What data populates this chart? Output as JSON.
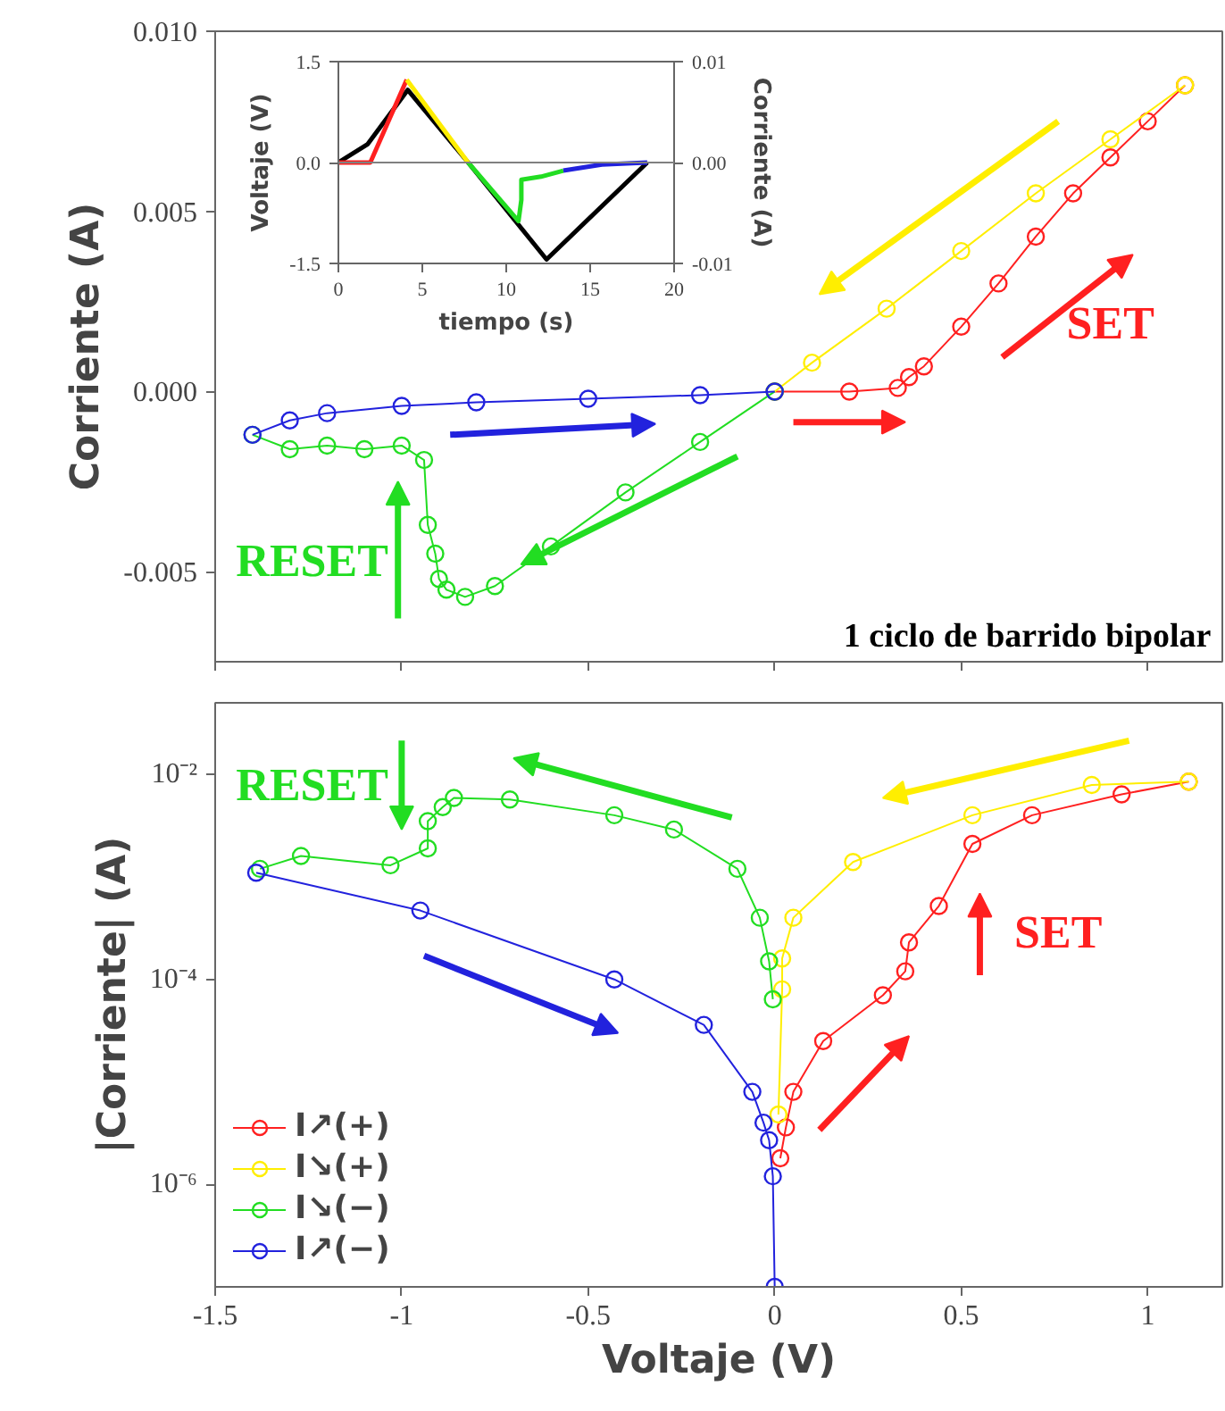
{
  "chart_data": [
    {
      "type": "line",
      "ylabel": "Corriente (A)",
      "xlim": [
        -1.5,
        1.2
      ],
      "ylim": [
        -0.0075,
        0.01
      ],
      "xticks": [
        -1.5,
        -1,
        -0.5,
        0,
        0.5,
        1
      ],
      "yticks": [
        {
          "value": 0.01,
          "label": "0.010"
        },
        {
          "value": 0.005,
          "label": "0.005"
        },
        {
          "value": 0,
          "label": "0.000"
        },
        {
          "value": -0.005,
          "label": "-0.005"
        }
      ],
      "tick_labels": "y",
      "marker": "circle",
      "grid": false,
      "annotations": [
        "SET",
        "RESET",
        "1 ciclo de barrido bipolar"
      ],
      "series": [
        {
          "color": "#ff2020",
          "x": [
            0,
            0.2,
            0.33,
            0.36,
            0.4,
            0.5,
            0.6,
            0.7,
            0.8,
            0.9,
            1.0,
            1.1
          ],
          "values": [
            0,
            0,
            0.0001,
            0.0004,
            0.0007,
            0.0018,
            0.003,
            0.0043,
            0.0055,
            0.0065,
            0.0075,
            0.0085
          ]
        },
        {
          "color": "#ffee00",
          "x": [
            1.1,
            0.9,
            0.7,
            0.5,
            0.3,
            0.1,
            0
          ],
          "values": [
            0.0085,
            0.007,
            0.0055,
            0.0039,
            0.0023,
            0.0008,
            0
          ]
        },
        {
          "color": "#22dd22",
          "x": [
            0,
            -0.2,
            -0.4,
            -0.6,
            -0.75,
            -0.83,
            -0.88,
            -0.9,
            -0.91,
            -0.93,
            -0.94,
            -1.0,
            -1.1,
            -1.2,
            -1.3,
            -1.4
          ],
          "values": [
            0,
            -0.0014,
            -0.0028,
            -0.0043,
            -0.0054,
            -0.0057,
            -0.0055,
            -0.0052,
            -0.0045,
            -0.0037,
            -0.0019,
            -0.0015,
            -0.0016,
            -0.0015,
            -0.0016,
            -0.0012
          ]
        },
        {
          "color": "#2222dd",
          "x": [
            -1.4,
            -1.3,
            -1.2,
            -1.0,
            -0.8,
            -0.5,
            -0.2,
            0
          ],
          "values": [
            -0.0012,
            -0.0008,
            -0.0006,
            -0.0004,
            -0.0003,
            -0.0002,
            -0.0001,
            0
          ]
        }
      ]
    },
    {
      "type": "line",
      "xlabel": "tiempo (s)",
      "ylabel": "Voltaje (V)",
      "y2label": "Corriente (A)",
      "xlim": [
        0,
        20
      ],
      "ylim": [
        -1.5,
        1.5
      ],
      "y2lim": [
        -0.01,
        0.01
      ],
      "xticks": [
        0,
        5,
        10,
        15,
        20
      ],
      "yticks": [
        {
          "value": -1.5,
          "label": "-1.5"
        },
        {
          "value": 0,
          "label": "0.0"
        },
        {
          "value": 1.5,
          "label": "1.5"
        }
      ],
      "y2ticks": [
        {
          "value": -0.01,
          "label": "-0.01"
        },
        {
          "value": 0,
          "label": "0.00"
        },
        {
          "value": 0.01,
          "label": "0.01"
        }
      ],
      "grid": false,
      "ref_lines": [
        {
          "axis": "y",
          "value": 0,
          "color": "#808080"
        }
      ],
      "series": [
        {
          "color": "#000000",
          "x": [
            0,
            1.73,
            4.13,
            7.73,
            12.4,
            18.4
          ],
          "values": [
            0,
            0.27,
            1.08,
            0,
            -1.44,
            0
          ]
        },
        {
          "color": "#ff2020",
          "axis": "y2",
          "x": [
            0,
            1.9,
            4.07
          ],
          "values": [
            0,
            0,
            0.0082
          ]
        },
        {
          "color": "#ffee00",
          "axis": "y2",
          "x": [
            4.07,
            7.73
          ],
          "values": [
            0.0082,
            0
          ]
        },
        {
          "color": "#22dd22",
          "axis": "y2",
          "x": [
            7.73,
            10.73,
            10.9,
            10.9,
            12.07,
            13.4
          ],
          "values": [
            0,
            -0.0058,
            -0.0037,
            -0.0017,
            -0.0014,
            -0.0008
          ]
        },
        {
          "color": "#2222dd",
          "axis": "y2",
          "x": [
            13.4,
            15.7,
            18.4
          ],
          "values": [
            -0.0008,
            -0.0002,
            0
          ]
        }
      ]
    },
    {
      "type": "line",
      "xlabel": "Voltaje (V)",
      "ylabel": "|Corriente| (A)",
      "log": "y",
      "xlim": [
        -1.5,
        1.2
      ],
      "ylim": [
        1e-07,
        0.05
      ],
      "xticks": [
        -1.5,
        -1,
        -0.5,
        0,
        0.5,
        1
      ],
      "yticks": [
        {
          "value": 0.01,
          "label": "10⁻²"
        },
        {
          "value": 0.0001,
          "label": "10⁻⁴"
        },
        {
          "value": 1e-06,
          "label": "10⁻⁶"
        }
      ],
      "marker": "circle",
      "grid": false,
      "legend": "bottom left",
      "annotations": [
        "RESET",
        "SET"
      ],
      "series": [
        {
          "name": "I↗(+)",
          "color": "#ff2020",
          "x": [
            0.015,
            0.03,
            0.05,
            0.13,
            0.29,
            0.35,
            0.36,
            0.44,
            0.53,
            0.69,
            0.93,
            1.11
          ],
          "values": [
            1.8e-06,
            3.6e-06,
            8e-06,
            2.5e-05,
            7e-05,
            0.00012,
            0.00023,
            0.00052,
            0.0021,
            0.004,
            0.0064,
            0.0085
          ]
        },
        {
          "name": "I↘(+)",
          "color": "#ffee00",
          "x": [
            1.11,
            0.85,
            0.53,
            0.21,
            0.05,
            0.02,
            0.02,
            0.01
          ],
          "values": [
            0.0085,
            0.0079,
            0.004,
            0.0014,
            0.0004,
            0.00016,
            8e-05,
            4.8e-06
          ]
        },
        {
          "name": "I↘(−)",
          "color": "#22dd22",
          "x": [
            -0.005,
            -0.015,
            -0.04,
            -0.1,
            -0.27,
            -0.43,
            -0.71,
            -0.86,
            -0.89,
            -0.93,
            -0.93,
            -1.03,
            -1.27,
            -1.38
          ],
          "values": [
            6.4e-05,
            0.00015,
            0.0004,
            0.0012,
            0.0029,
            0.004,
            0.0057,
            0.0059,
            0.0048,
            0.0035,
            0.0019,
            0.0013,
            0.0016,
            0.0012
          ]
        },
        {
          "name": "I↗(−)",
          "color": "#2222dd",
          "x": [
            -1.39,
            -0.95,
            -0.43,
            -0.19,
            -0.06,
            -0.03,
            -0.015,
            -0.005,
            0
          ],
          "values": [
            0.0011,
            0.00047,
            0.0001,
            3.6e-05,
            8e-06,
            4e-06,
            2.7e-06,
            1.2e-06,
            1e-07
          ]
        }
      ]
    }
  ]
}
